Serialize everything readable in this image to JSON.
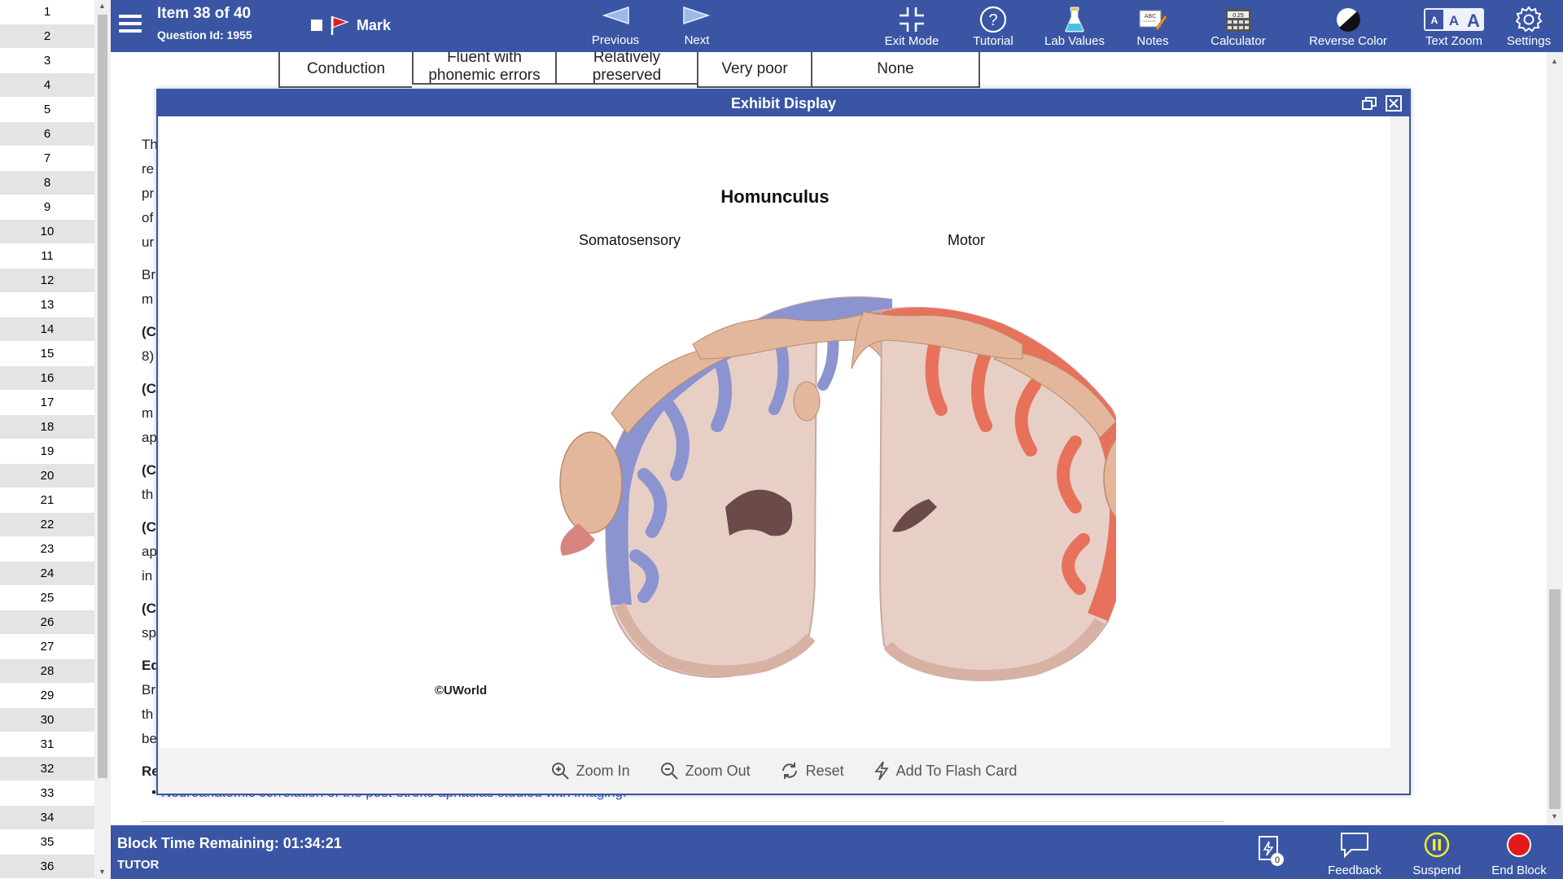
{
  "question_list": {
    "numbers": [
      "1",
      "2",
      "3",
      "4",
      "5",
      "6",
      "7",
      "8",
      "9",
      "10",
      "11",
      "12",
      "13",
      "14",
      "15",
      "16",
      "17",
      "18",
      "19",
      "20",
      "21",
      "22",
      "23",
      "24",
      "25",
      "26",
      "27",
      "28",
      "29",
      "30",
      "31",
      "32",
      "33",
      "34",
      "35",
      "36"
    ],
    "current_index": 36
  },
  "toolbar": {
    "item_title": "Item 38 of 40",
    "question_id": "Question Id: 1955",
    "mark_label": "Mark",
    "previous_label": "Previous",
    "next_label": "Next",
    "exit_mode_label": "Exit Mode",
    "tutorial_label": "Tutorial",
    "lab_values_label": "Lab Values",
    "notes_label": "Notes",
    "calculator_label": "Calculator",
    "calculator_display": "0.25",
    "reverse_color_label": "Reverse Color",
    "text_zoom_label": "Text Zoom",
    "settings_label": "Settings"
  },
  "answer_table": {
    "cells": [
      "Conduction",
      "Fluent with phonemic errors",
      "Relatively preserved",
      "Very poor",
      "None"
    ]
  },
  "background": {
    "fragments": [
      "Th",
      "re",
      "pr",
      "of",
      "ur",
      "Br",
      "m",
      "(C",
      "8)",
      "(C",
      "m",
      "ap",
      "(C",
      "th",
      "(C",
      "ap",
      "in",
      "(C",
      "sp",
      "Ed",
      "Br",
      "th",
      "be",
      "Re"
    ],
    "reference_link": "Neuroanatomic correlation of the post-stroke aphasias studied with imaging."
  },
  "exhibit": {
    "header_title": "Exhibit Display",
    "figure_title": "Homunculus",
    "left_label": "Somatosensory",
    "right_label": "Motor",
    "copyright": "©UWorld",
    "zoom_in_label": "Zoom In",
    "zoom_out_label": "Zoom Out",
    "reset_label": "Reset",
    "flash_card_label": "Add To Flash Card",
    "colors": {
      "somatosensory_cortex": "#8b93d0",
      "motor_cortex": "#e8715c",
      "white_matter": "#e7cfc6"
    }
  },
  "bottombar": {
    "timer": "Block Time Remaining: 01:34:21",
    "mode": "TUTOR",
    "flash_count": "0",
    "feedback_label": "Feedback",
    "suspend_label": "Suspend",
    "end_block_label": "End Block"
  }
}
